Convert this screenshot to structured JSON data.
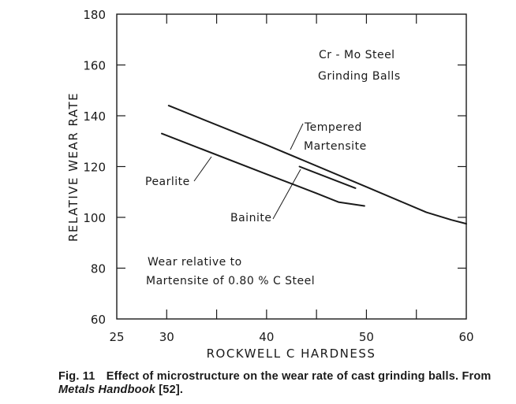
{
  "chart_data": {
    "type": "line",
    "title": "",
    "xlabel": "ROCKWELL C HARDNESS",
    "ylabel": "RELATIVE WEAR RATE",
    "xlim": [
      25,
      60
    ],
    "ylim": [
      60,
      180
    ],
    "x_ticks": [
      25,
      30,
      40,
      50,
      60
    ],
    "x_minor_ticks": [
      30,
      35,
      40,
      45,
      50,
      55
    ],
    "y_ticks": [
      60,
      80,
      100,
      120,
      140,
      160,
      180
    ],
    "grid": false,
    "series": [
      {
        "name": "Tempered Martensite",
        "label": [
          "Tempered",
          "Martensite"
        ],
        "points": [
          [
            30.2,
            144
          ],
          [
            40,
            128.5
          ],
          [
            50,
            112
          ],
          [
            56,
            102
          ],
          [
            58.5,
            99
          ],
          [
            60,
            97.5
          ]
        ]
      },
      {
        "name": "Pearlite",
        "label": [
          "Pearlite"
        ],
        "points": [
          [
            29.5,
            133
          ],
          [
            40,
            117
          ],
          [
            45,
            109.5
          ],
          [
            47.2,
            106
          ],
          [
            49.8,
            104.5
          ]
        ]
      },
      {
        "name": "Bainite",
        "label": [
          "Bainite"
        ],
        "points": [
          [
            43.3,
            120
          ],
          [
            48.9,
            111.5
          ]
        ]
      }
    ],
    "annotations": [
      {
        "lines": [
          "Cr - Mo Steel",
          "Grinding Balls"
        ],
        "position": "top-right"
      },
      {
        "lines": [
          "Wear relative to",
          "Martensite of 0.80 % C Steel"
        ],
        "position": "bottom-left"
      }
    ]
  },
  "caption": {
    "fig_label": "Fig. 11",
    "text": "Effect of microstructure on the wear rate of cast grinding balls. From ",
    "source_italic": "Metals Handbook",
    "ref": " [52]."
  }
}
